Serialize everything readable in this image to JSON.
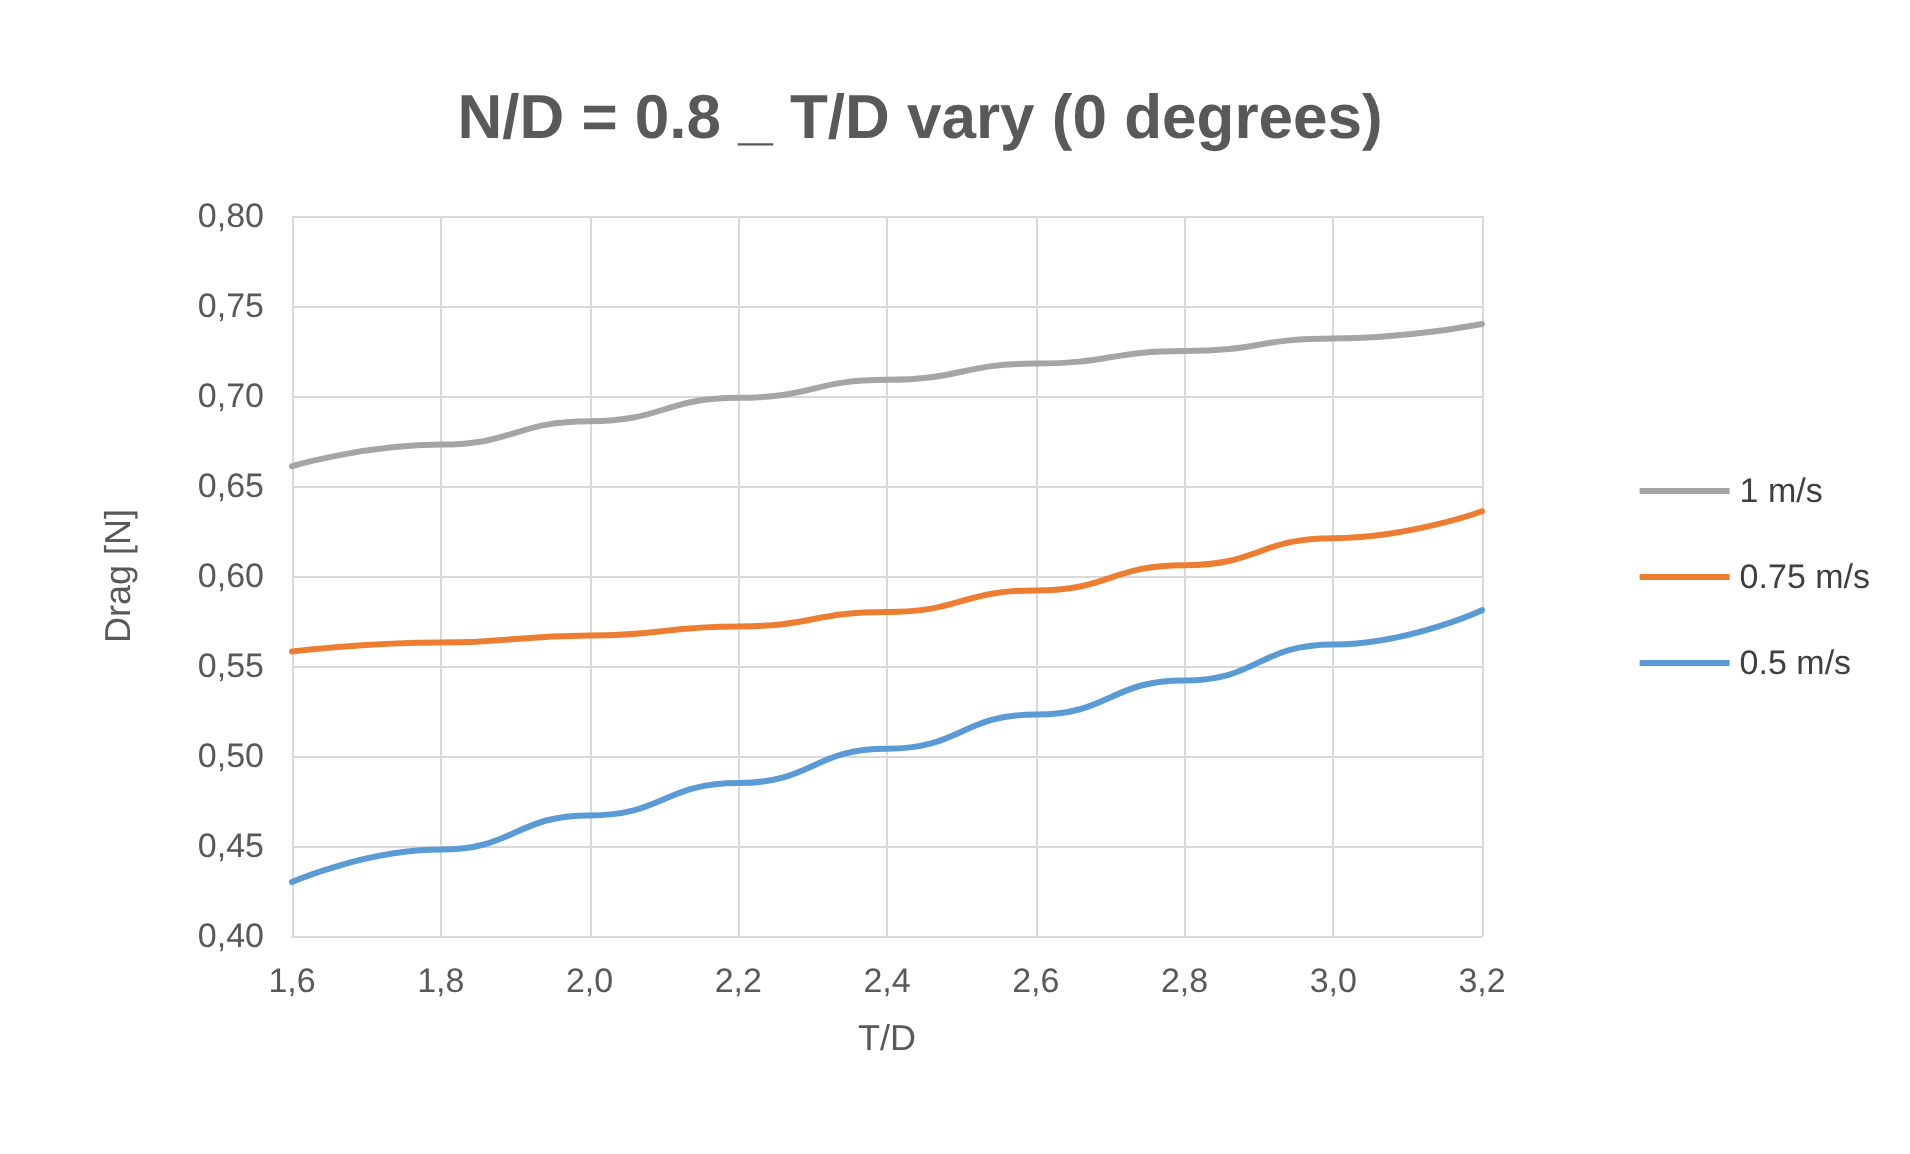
{
  "chart_data": {
    "type": "line",
    "title": "N/D = 0.8 _ T/D vary (0 degrees)",
    "xlabel": "T/D",
    "ylabel": "Drag [N]",
    "x": [
      1.6,
      1.8,
      2.0,
      2.2,
      2.4,
      2.6,
      2.8,
      3.0,
      3.2
    ],
    "series": [
      {
        "name": "1 m/s",
        "color": "#a5a5a5",
        "values": [
          0.661,
          0.673,
          0.686,
          0.699,
          0.709,
          0.718,
          0.725,
          0.732,
          0.74
        ]
      },
      {
        "name": "0.75 m/s",
        "color": "#ed7d31",
        "values": [
          0.558,
          0.563,
          0.567,
          0.572,
          0.58,
          0.592,
          0.606,
          0.621,
          0.636
        ]
      },
      {
        "name": "0.5 m/s",
        "color": "#5b9bd5",
        "values": [
          0.43,
          0.448,
          0.467,
          0.485,
          0.504,
          0.523,
          0.542,
          0.562,
          0.581
        ]
      }
    ],
    "xlim": [
      1.6,
      3.2
    ],
    "xticks": [
      {
        "value": 1.6,
        "label": "1,6"
      },
      {
        "value": 1.8,
        "label": "1,8"
      },
      {
        "value": 2.0,
        "label": "2,0"
      },
      {
        "value": 2.2,
        "label": "2,2"
      },
      {
        "value": 2.4,
        "label": "2,4"
      },
      {
        "value": 2.6,
        "label": "2,6"
      },
      {
        "value": 2.8,
        "label": "2,8"
      },
      {
        "value": 3.0,
        "label": "3,0"
      },
      {
        "value": 3.2,
        "label": "3,2"
      }
    ],
    "ylim": [
      0.4,
      0.8
    ],
    "yticks": [
      {
        "value": 0.4,
        "label": "0,40"
      },
      {
        "value": 0.45,
        "label": "0,45"
      },
      {
        "value": 0.5,
        "label": "0,50"
      },
      {
        "value": 0.55,
        "label": "0,55"
      },
      {
        "value": 0.6,
        "label": "0,60"
      },
      {
        "value": 0.65,
        "label": "0,65"
      },
      {
        "value": 0.7,
        "label": "0,70"
      },
      {
        "value": 0.75,
        "label": "0,75"
      },
      {
        "value": 0.8,
        "label": "0,80"
      }
    ],
    "grid": true,
    "legend": "right",
    "marker": "none",
    "line_style": "solid"
  }
}
